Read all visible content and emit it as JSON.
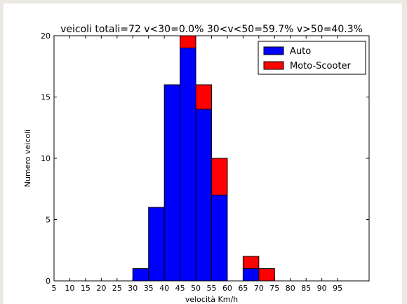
{
  "chart_data": {
    "type": "bar",
    "stacked": true,
    "title": "veicoli totali=72 v<30=0.0% 30<v<50=59.7% v>50=40.3%",
    "xlabel": "velocità Km/h",
    "ylabel": "Numero veicoli",
    "xlim": [
      5,
      105
    ],
    "ylim": [
      0,
      20
    ],
    "xticks": [
      5,
      10,
      15,
      20,
      25,
      30,
      35,
      40,
      45,
      50,
      55,
      60,
      65,
      70,
      75,
      80,
      85,
      90,
      95
    ],
    "yticks": [
      0,
      5,
      10,
      15,
      20
    ],
    "bin_width": 5,
    "bins": [
      30,
      35,
      40,
      45,
      50,
      55,
      65,
      70
    ],
    "series": [
      {
        "name": "Auto",
        "color": "#0000ff",
        "values": [
          1,
          6,
          16,
          19,
          14,
          7,
          1,
          0
        ]
      },
      {
        "name": "Moto-Scooter",
        "color": "#ff0000",
        "values": [
          0,
          0,
          0,
          1,
          2,
          3,
          1,
          1
        ]
      }
    ],
    "legend_position": "top-right",
    "grid": false
  }
}
